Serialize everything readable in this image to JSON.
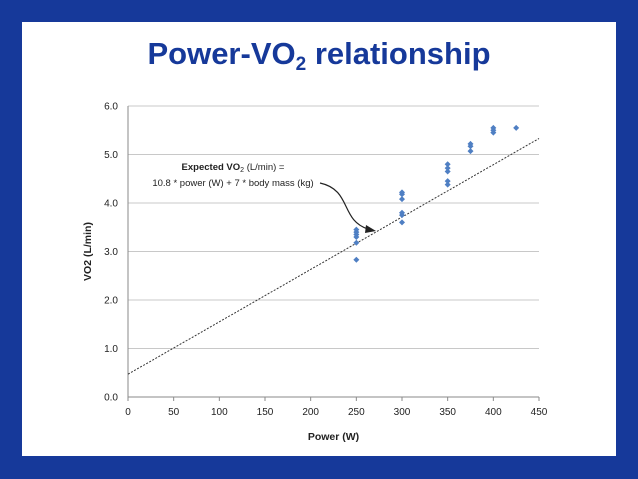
{
  "slide": {
    "title_main": "Power-VO",
    "title_sub": "2",
    "title_rest": " relationship",
    "border_color": "#16399a"
  },
  "chart_data": {
    "type": "scatter",
    "xlabel": "Power (W)",
    "ylabel": "VO2 (L/min)",
    "xlim": [
      0,
      450
    ],
    "ylim": [
      0,
      6
    ],
    "xticks": [
      0,
      50,
      100,
      150,
      200,
      250,
      300,
      350,
      400,
      450
    ],
    "yticks": [
      "0.0",
      "1.0",
      "2.0",
      "3.0",
      "4.0",
      "5.0",
      "6.0"
    ],
    "grid": "horizontal",
    "marker_color": "#4f7fc3",
    "points": [
      [
        250,
        2.83
      ],
      [
        250,
        3.18
      ],
      [
        250,
        3.3
      ],
      [
        250,
        3.35
      ],
      [
        250,
        3.4
      ],
      [
        250,
        3.45
      ],
      [
        300,
        3.6
      ],
      [
        300,
        3.75
      ],
      [
        300,
        3.8
      ],
      [
        300,
        4.08
      ],
      [
        300,
        4.18
      ],
      [
        300,
        4.22
      ],
      [
        350,
        4.38
      ],
      [
        350,
        4.45
      ],
      [
        350,
        4.65
      ],
      [
        350,
        4.72
      ],
      [
        350,
        4.8
      ],
      [
        375,
        5.07
      ],
      [
        375,
        5.17
      ],
      [
        375,
        5.22
      ],
      [
        400,
        5.45
      ],
      [
        400,
        5.5
      ],
      [
        400,
        5.55
      ],
      [
        425,
        5.55
      ]
    ],
    "expected_line": {
      "x": [
        0,
        450
      ],
      "y": [
        0.47,
        5.33
      ]
    },
    "annotation": {
      "line1_a": "Expected VO",
      "line1_sub": "2",
      "line1_b": " (L/min) =",
      "line2": "10.8 * power (W) + 7 * body mass (kg)"
    }
  }
}
